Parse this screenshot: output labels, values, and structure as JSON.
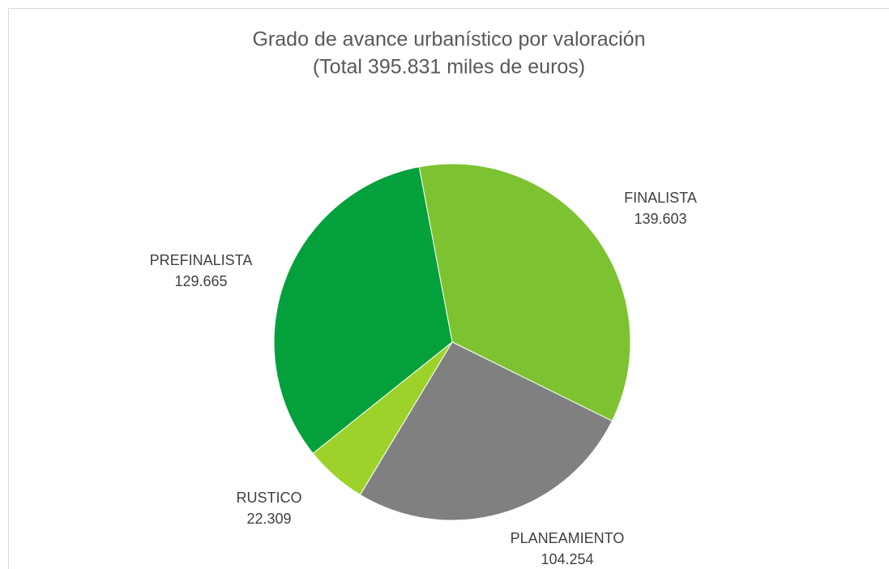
{
  "chart_data": {
    "type": "pie",
    "title": "Grado de avance urbanístico por valoración",
    "subtitle": "(Total 395.831 miles de euros)",
    "categories": [
      "FINALISTA",
      "PLANEAMIENTO",
      "RUSTICO",
      "PREFINALISTA"
    ],
    "values": [
      139603,
      104254,
      22309,
      129665
    ],
    "value_labels": [
      "139.603",
      "104.254",
      "22.309",
      "129.665"
    ],
    "colors": [
      "#7dc331",
      "#808080",
      "#9dd22b",
      "#04a03c"
    ]
  }
}
